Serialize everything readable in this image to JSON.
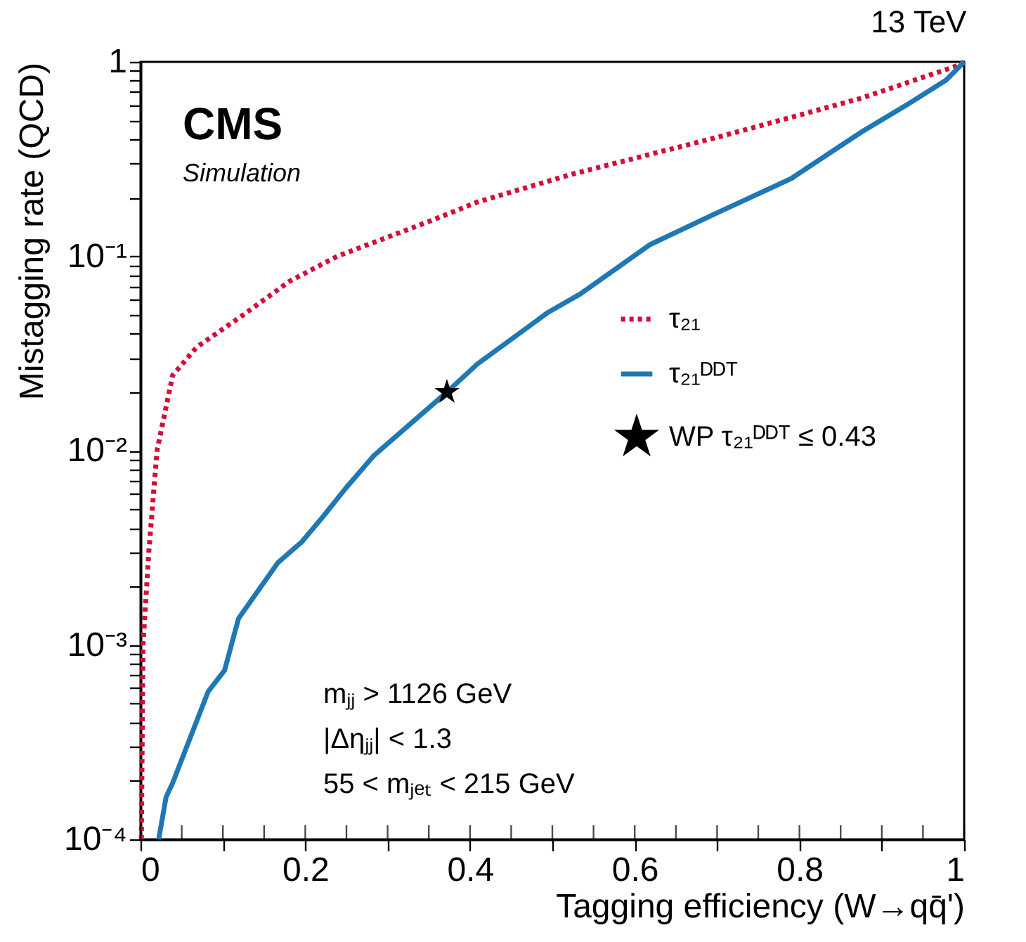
{
  "chart_data": {
    "type": "line",
    "title": "13 TeV",
    "xlabel": "Tagging efficiency (W→qq̄')",
    "ylabel": "Mistagging rate (QCD)",
    "log": "y",
    "grid": false,
    "legend": "right",
    "xlim": [
      0,
      1
    ],
    "ylim": [
      0.0001,
      1
    ],
    "xticks": [
      0,
      {
        "value": 0.05,
        "label": null
      },
      {
        "value": 0.1,
        "label": null
      },
      {
        "value": 0.15,
        "label": null
      },
      0.2,
      {
        "value": 0.25,
        "label": null
      },
      {
        "value": 0.3,
        "label": null
      },
      {
        "value": 0.35,
        "label": null
      },
      0.4,
      {
        "value": 0.45,
        "label": null
      },
      {
        "value": 0.5,
        "label": null
      },
      {
        "value": 0.55,
        "label": null
      },
      0.6,
      {
        "value": 0.65,
        "label": null
      },
      {
        "value": 0.7,
        "label": null
      },
      {
        "value": 0.75,
        "label": null
      },
      0.8,
      {
        "value": 0.85,
        "label": null
      },
      {
        "value": 0.9,
        "label": null
      },
      {
        "value": 0.95,
        "label": null
      },
      1
    ],
    "yticks": [
      {
        "value": 0.0001,
        "label": "10⁻⁴"
      },
      {
        "value": 0.0002,
        "label": null
      },
      {
        "value": 0.0003,
        "label": null
      },
      {
        "value": 0.0004,
        "label": null
      },
      {
        "value": 0.0005,
        "label": null
      },
      {
        "value": 0.0006,
        "label": null
      },
      {
        "value": 0.0007,
        "label": null
      },
      {
        "value": 0.0008,
        "label": null
      },
      {
        "value": 0.0009,
        "label": null
      },
      {
        "value": 0.001,
        "label": "10⁻³"
      },
      {
        "value": 0.002,
        "label": null
      },
      {
        "value": 0.003,
        "label": null
      },
      {
        "value": 0.004,
        "label": null
      },
      {
        "value": 0.005,
        "label": null
      },
      {
        "value": 0.006,
        "label": null
      },
      {
        "value": 0.007,
        "label": null
      },
      {
        "value": 0.008,
        "label": null
      },
      {
        "value": 0.009,
        "label": null
      },
      {
        "value": 0.01,
        "label": "10⁻²"
      },
      {
        "value": 0.02,
        "label": null
      },
      {
        "value": 0.03,
        "label": null
      },
      {
        "value": 0.04,
        "label": null
      },
      {
        "value": 0.05,
        "label": null
      },
      {
        "value": 0.06,
        "label": null
      },
      {
        "value": 0.07,
        "label": null
      },
      {
        "value": 0.08,
        "label": null
      },
      {
        "value": 0.09,
        "label": null
      },
      {
        "value": 0.1,
        "label": "10⁻¹"
      },
      {
        "value": 0.2,
        "label": null
      },
      {
        "value": 0.3,
        "label": null
      },
      {
        "value": 0.4,
        "label": null
      },
      {
        "value": 0.5,
        "label": null
      },
      {
        "value": 0.6,
        "label": null
      },
      {
        "value": 0.7,
        "label": null
      },
      {
        "value": 0.8,
        "label": null
      },
      {
        "value": 0.9,
        "label": null
      },
      1
    ],
    "series": [
      {
        "name": "τ₂₁",
        "color": "#d0103a",
        "line_style": "dotted",
        "marker": "none",
        "x": [
          0.001,
          0.003,
          0.01,
          0.02,
          0.039,
          0.068,
          0.125,
          0.181,
          0.239,
          0.295,
          0.352,
          0.409,
          0.522,
          0.705,
          0.875,
          0.99,
          1
        ],
        "values": [
          0.0001,
          0.001,
          0.003,
          0.01,
          0.0244,
          0.034,
          0.05,
          0.0744,
          0.1,
          0.123,
          0.152,
          0.19,
          0.263,
          0.414,
          0.65,
          0.95,
          1
        ]
      },
      {
        "name": "τ₂₁ᴰᴰᵀ",
        "color": "#1f78b4",
        "line_style": "solid",
        "marker": "none",
        "x": [
          0.022,
          0.031,
          0.039,
          0.082,
          0.102,
          0.119,
          0.167,
          0.196,
          0.222,
          0.249,
          0.283,
          0.372,
          0.409,
          0.495,
          0.534,
          0.619,
          0.705,
          0.79,
          0.875,
          0.932,
          0.978,
          1
        ],
        "values": [
          0.0001,
          0.000165,
          0.000195,
          0.000575,
          0.00074,
          0.00137,
          0.00266,
          0.0034,
          0.0046,
          0.0064,
          0.0094,
          0.02,
          0.0279,
          0.0515,
          0.064,
          0.115,
          0.171,
          0.251,
          0.435,
          0.607,
          0.805,
          1
        ]
      },
      {
        "name": "WP τ₂₁ᴰᴰᵀ ≤ 0.43",
        "type": "scatter",
        "marker": "star",
        "color": "#000000",
        "x": [
          0.372
        ],
        "values": [
          0.02
        ]
      }
    ],
    "annotations": [
      "CMS",
      "Simulation",
      "mⱼⱼ > 1126 GeV",
      "|Δηⱼⱼ| < 1.3",
      "55 < mⱼₑₜ < 215 GeV"
    ]
  }
}
